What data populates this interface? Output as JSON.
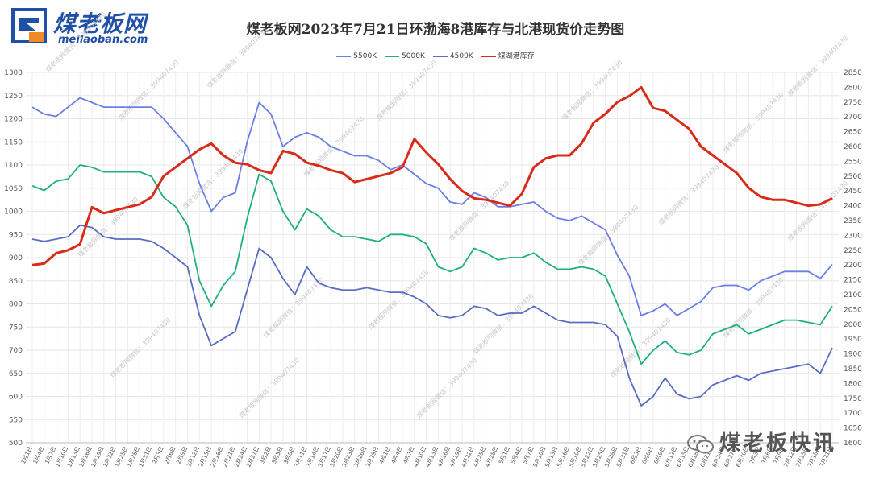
{
  "brand": {
    "name": "煤老板网",
    "url": "meilaoban.com",
    "wechat": "煤老板快讯"
  },
  "watermark": "煤老板网微信：399407430",
  "chart_data": {
    "type": "line",
    "title": "煤老板网2023年7月21日环渤海8港库存与北港现货价走势图",
    "legend_position": "top",
    "grid": true,
    "x": [
      "1月1日",
      "1月4日",
      "1月7日",
      "1月10日",
      "1月13日",
      "1月16日",
      "1月19日",
      "1月22日",
      "1月25日",
      "1月28日",
      "1月31日",
      "2月3日",
      "2月6日",
      "2月9日",
      "2月12日",
      "2月15日",
      "2月18日",
      "2月21日",
      "2月24日",
      "2月27日",
      "3月2日",
      "3月5日",
      "3月8日",
      "3月11日",
      "3月14日",
      "3月17日",
      "3月20日",
      "3月23日",
      "3月26日",
      "3月29日",
      "4月1日",
      "4月4日",
      "4月7日",
      "4月10日",
      "4月13日",
      "4月16日",
      "4月19日",
      "4月22日",
      "4月25日",
      "4月28日",
      "5月1日",
      "5月4日",
      "5月7日",
      "5月10日",
      "5月13日",
      "5月16日",
      "5月19日",
      "5月22日",
      "5月25日",
      "5月28日",
      "5月31日",
      "6月3日",
      "6月6日",
      "6月9日",
      "6月12日",
      "6月15日",
      "6月18日",
      "6月21日",
      "6月24日",
      "6月27日",
      "6月30日",
      "7月3日",
      "7月6日",
      "7月9日",
      "7月12日",
      "7月15日",
      "7月18日",
      "7月21日"
    ],
    "x_tick_labels": [
      "1月1日",
      "1月4日",
      "1月7日",
      "1月10日",
      "1月13日",
      "1月16日",
      "1月19日",
      "1月22日",
      "1月25日",
      "1月28日",
      "1月31日",
      "2月3日",
      "2月6日",
      "2月9日",
      "2月12日",
      "2月15日",
      "2月18日",
      "2月21日",
      "2月24日",
      "2月27日",
      "3月2日",
      "3月5日",
      "3月8日",
      "3月11日",
      "3月14日",
      "3月17日",
      "3月20日",
      "3月23日",
      "3月26日",
      "3月29日",
      "4月1日",
      "4月4日",
      "4月7日",
      "4月10日",
      "4月13日",
      "4月16日",
      "4月19日",
      "4月22日",
      "4月25日",
      "4月28日",
      "5月1日",
      "5月4日",
      "5月7日",
      "5月10日",
      "5月13日",
      "5月16日",
      "5月19日",
      "5月22日",
      "5月25日",
      "5月28日",
      "5月31日",
      "6月3日",
      "6月6日",
      "6月9日",
      "6月12日",
      "6月15日",
      "6月18日",
      "6月21日",
      "6月24日",
      "6月27日",
      "6月30日",
      "7月3日",
      "7月6日",
      "7月9日",
      "7月12日",
      "7月15日",
      "7月18日",
      "7月21日"
    ],
    "y_left_ticks": [
      500,
      550,
      600,
      650,
      700,
      750,
      800,
      850,
      900,
      950,
      1000,
      1050,
      1100,
      1150,
      1200,
      1250,
      1300
    ],
    "y_right_ticks": [
      1600,
      1650,
      1700,
      1750,
      1800,
      1850,
      1900,
      1950,
      2000,
      2050,
      2100,
      2150,
      2200,
      2250,
      2300,
      2350,
      2400,
      2450,
      2500,
      2550,
      2600,
      2650,
      2700,
      2750,
      2800,
      2850
    ],
    "ylim_left": [
      500,
      1300
    ],
    "ylim_right": [
      1600,
      2850
    ],
    "series": [
      {
        "name": "5500K",
        "axis": "left",
        "color": "#6b7ee6",
        "values": [
          1225,
          1210,
          1205,
          1225,
          1245,
          1235,
          1225,
          1225,
          1225,
          1225,
          1225,
          1200,
          1170,
          1140,
          1060,
          1000,
          1030,
          1040,
          1150,
          1235,
          1210,
          1140,
          1160,
          1170,
          1160,
          1140,
          1130,
          1120,
          1120,
          1110,
          1090,
          1100,
          1080,
          1060,
          1050,
          1020,
          1015,
          1040,
          1030,
          1010,
          1010,
          1015,
          1020,
          1000,
          985,
          980,
          990,
          975,
          960,
          905,
          860,
          775,
          785,
          800,
          775,
          790,
          805,
          835,
          840,
          840,
          830,
          850,
          860,
          870,
          870,
          870,
          855,
          885
        ]
      },
      {
        "name": "5000K",
        "axis": "left",
        "color": "#1fb07a",
        "values": [
          1055,
          1045,
          1065,
          1070,
          1100,
          1095,
          1085,
          1085,
          1085,
          1085,
          1075,
          1030,
          1010,
          970,
          850,
          795,
          840,
          870,
          985,
          1080,
          1065,
          1000,
          960,
          1005,
          990,
          960,
          945,
          945,
          940,
          935,
          950,
          950,
          945,
          930,
          880,
          870,
          880,
          920,
          910,
          895,
          900,
          900,
          910,
          890,
          875,
          875,
          880,
          875,
          860,
          800,
          740,
          670,
          700,
          720,
          695,
          690,
          700,
          735,
          745,
          755,
          735,
          745,
          755,
          765,
          765,
          760,
          755,
          795
        ]
      },
      {
        "name": "4500K",
        "axis": "left",
        "color": "#5a6bc2",
        "values": [
          940,
          935,
          940,
          945,
          970,
          965,
          945,
          940,
          940,
          940,
          935,
          920,
          900,
          880,
          775,
          710,
          725,
          740,
          830,
          920,
          900,
          855,
          820,
          880,
          845,
          835,
          830,
          830,
          835,
          830,
          825,
          825,
          815,
          800,
          775,
          770,
          775,
          795,
          790,
          775,
          780,
          780,
          795,
          780,
          765,
          760,
          760,
          760,
          755,
          730,
          640,
          580,
          600,
          640,
          605,
          595,
          600,
          625,
          635,
          645,
          635,
          650,
          655,
          660,
          665,
          670,
          650,
          705
        ]
      },
      {
        "name": "煤湖港库存",
        "axis": "right",
        "color": "#d92b1a",
        "values": [
          2200,
          2205,
          2240,
          2250,
          2270,
          2395,
          2375,
          2385,
          2395,
          2405,
          2430,
          2500,
          2530,
          2560,
          2590,
          2610,
          2570,
          2545,
          2540,
          2520,
          2510,
          2585,
          2575,
          2545,
          2535,
          2520,
          2510,
          2480,
          2490,
          2500,
          2510,
          2530,
          2625,
          2580,
          2540,
          2490,
          2450,
          2425,
          2420,
          2410,
          2400,
          2440,
          2530,
          2560,
          2570,
          2570,
          2610,
          2680,
          2710,
          2750,
          2770,
          2800,
          2730,
          2720,
          2690,
          2660,
          2600,
          2570,
          2540,
          2510,
          2460,
          2430,
          2420,
          2420,
          2410,
          2400,
          2405,
          2425
        ]
      }
    ]
  }
}
